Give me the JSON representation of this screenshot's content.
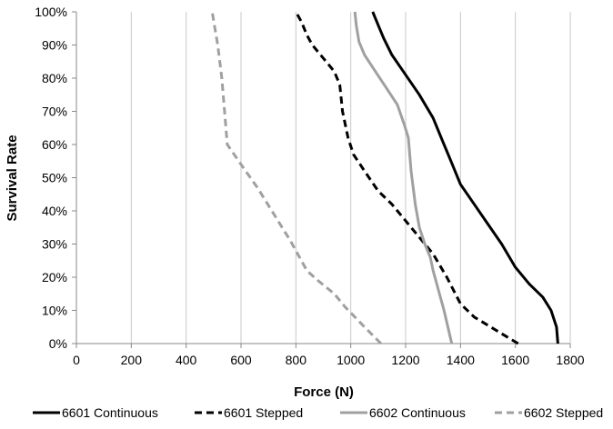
{
  "chart_data": {
    "type": "line",
    "title": "",
    "xlabel": "Force (N)",
    "ylabel": "Survival Rate",
    "xlim": [
      0,
      1800
    ],
    "ylim": [
      0,
      100
    ],
    "x_ticks": [
      "0",
      "200",
      "400",
      "600",
      "800",
      "1000",
      "1200",
      "1400",
      "1600",
      "1800"
    ],
    "y_ticks": [
      "0%",
      "10%",
      "20%",
      "30%",
      "40%",
      "50%",
      "60%",
      "70%",
      "80%",
      "90%",
      "100%"
    ],
    "grid": {
      "vertical": true,
      "horizontal": false
    },
    "legend_position": "bottom",
    "series": [
      {
        "name": "6601 Continuous",
        "color": "#000000",
        "dash": "solid",
        "x": [
          1755,
          1750,
          1730,
          1700,
          1650,
          1600,
          1550,
          1500,
          1450,
          1400,
          1360,
          1340,
          1300,
          1250,
          1200,
          1150,
          1120,
          1100,
          1090,
          1080
        ],
        "y": [
          0,
          5,
          10,
          14,
          18,
          23,
          30,
          36,
          42,
          48,
          56,
          60,
          68,
          75,
          81,
          87,
          92,
          96,
          98,
          100
        ]
      },
      {
        "name": "6601 Stepped",
        "color": "#000000",
        "dash": "dashed",
        "x": [
          1610,
          1550,
          1450,
          1400,
          1350,
          1300,
          1250,
          1200,
          1150,
          1100,
          1050,
          1010,
          990,
          970,
          960,
          940,
          900,
          860,
          840,
          820,
          800
        ],
        "y": [
          0,
          3,
          8,
          12,
          20,
          27,
          32,
          37,
          42,
          46,
          52,
          57,
          62,
          70,
          78,
          82,
          86,
          90,
          93,
          97,
          100
        ]
      },
      {
        "name": "6602 Continuous",
        "color": "#a0a0a0",
        "dash": "solid",
        "x": [
          1368,
          1340,
          1320,
          1300,
          1290,
          1270,
          1250,
          1235,
          1220,
          1210,
          1195,
          1170,
          1130,
          1090,
          1050,
          1030,
          1020,
          1015
        ],
        "y": [
          0,
          10,
          16,
          22,
          26,
          30,
          35,
          42,
          52,
          62,
          66,
          72,
          77,
          82,
          87,
          91,
          96,
          100
        ]
      },
      {
        "name": "6602 Stepped",
        "color": "#a0a0a0",
        "dash": "dashed",
        "x": [
          1110,
          1050,
          980,
          940,
          880,
          840,
          780,
          720,
          660,
          600,
          550,
          545,
          540,
          535,
          530,
          515,
          505,
          495
        ],
        "y": [
          0,
          5,
          11,
          15,
          19,
          22,
          31,
          39,
          47,
          54,
          60,
          65,
          70,
          75,
          80,
          90,
          95,
          100
        ]
      }
    ]
  }
}
